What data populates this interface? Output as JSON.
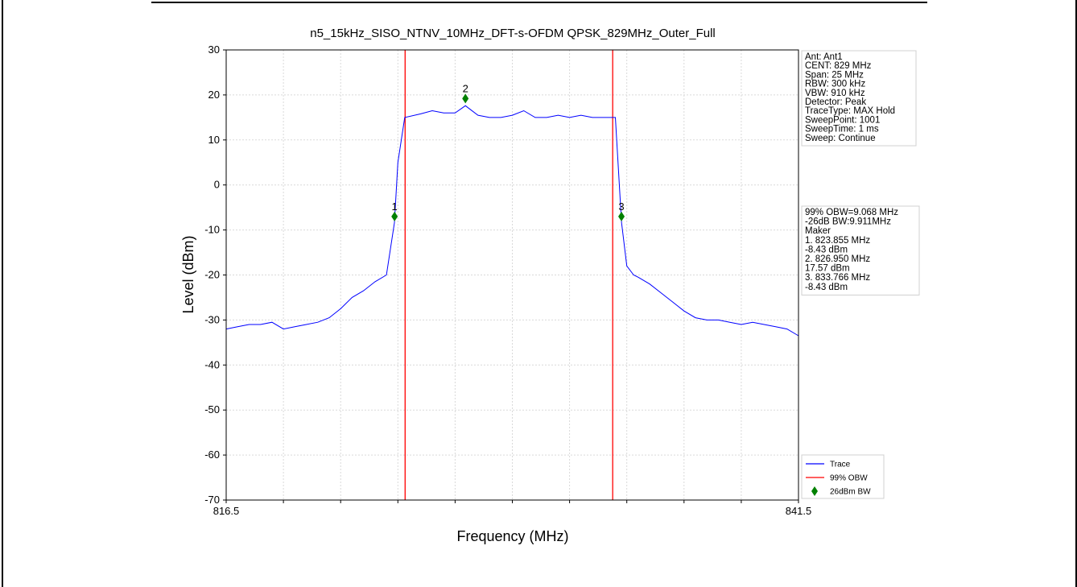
{
  "chart_data": {
    "type": "line",
    "title": "n5_15kHz_SISO_NTNV_10MHz_DFT-s-OFDM QPSK_829MHz_Outer_Full",
    "xlabel": "Frequency (MHz)",
    "ylabel": "Level (dBm)",
    "xlim": [
      816.5,
      841.5
    ],
    "ylim": [
      -70,
      30
    ],
    "x_tick_labels": [
      "816.5",
      "841.5"
    ],
    "y_ticks": [
      30,
      20,
      10,
      0,
      -10,
      -20,
      -30,
      -40,
      -50,
      -60,
      -70
    ],
    "grid": true,
    "series": [
      {
        "name": "Trace",
        "color": "#0000ff",
        "x": [
          816.5,
          817.0,
          817.5,
          818.0,
          818.5,
          819.0,
          819.5,
          820.0,
          820.5,
          821.0,
          821.5,
          822.0,
          822.5,
          823.0,
          823.5,
          823.85,
          824.0,
          824.3,
          825.0,
          825.5,
          826.0,
          826.5,
          826.95,
          827.5,
          828.0,
          828.5,
          829.0,
          829.5,
          830.0,
          830.5,
          831.0,
          831.5,
          832.0,
          832.5,
          833.0,
          833.5,
          833.77,
          834.0,
          834.3,
          834.5,
          835.0,
          835.5,
          836.0,
          836.5,
          837.0,
          837.5,
          838.0,
          838.5,
          839.0,
          839.5,
          840.0,
          840.5,
          841.0,
          841.5
        ],
        "y": [
          -32,
          -31.5,
          -31,
          -31,
          -30.5,
          -32,
          -31.5,
          -31,
          -30.5,
          -29.5,
          -27.5,
          -25,
          -23.5,
          -21.5,
          -20,
          -8.4,
          5,
          15,
          15.8,
          16.5,
          16,
          16,
          17.6,
          15.5,
          15,
          15,
          15.5,
          16.5,
          15,
          15,
          15.5,
          15,
          15.5,
          15,
          15,
          15,
          -8.4,
          -18,
          -20,
          -20.5,
          -22,
          -24,
          -26,
          -28,
          -29.5,
          -30,
          -30,
          -30.5,
          -31,
          -30.5,
          -31,
          -31.5,
          -32,
          -33.5
        ]
      }
    ],
    "obw_lines": {
      "name": "99% OBW",
      "color": "#ff0000",
      "x": [
        824.316,
        833.384
      ]
    },
    "markers": {
      "name": "26dBm BW",
      "color": "#008000",
      "points": [
        {
          "label": "1",
          "x": 823.855,
          "y": -7
        },
        {
          "label": "2",
          "x": 826.95,
          "y": 19.2
        },
        {
          "label": "3",
          "x": 833.766,
          "y": -7
        }
      ]
    },
    "info_box": [
      "Ant: Ant1",
      "CENT: 829 MHz",
      "Span: 25 MHz",
      "RBW: 300 kHz",
      "VBW: 910 kHz",
      "Detector: Peak",
      "TraceType: MAX Hold",
      "SweepPoint: 1001",
      "SweepTime: 1 ms",
      "Sweep: Continue"
    ],
    "measure_box": [
      "99% OBW=9.068 MHz",
      "-26dB BW:9.911MHz",
      "Maker",
      "1. 823.855 MHz",
      "    -8.43 dBm",
      "2. 826.950 MHz",
      "    17.57 dBm",
      "3. 833.766 MHz",
      "    -8.43 dBm"
    ],
    "legend": {
      "placement": "bottom-right",
      "entries": [
        "Trace",
        "99% OBW",
        "26dBm BW"
      ]
    }
  }
}
